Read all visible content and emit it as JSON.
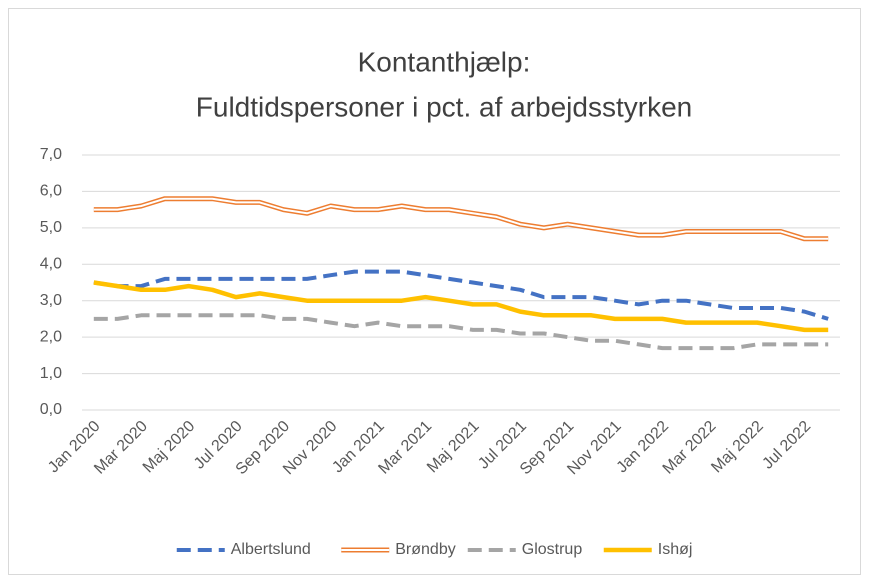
{
  "chart_data": {
    "type": "line",
    "title": [
      "Kontanthjælp:",
      "Fuldtidspersoner i pct. af arbejdsstyrken"
    ],
    "categories": [
      "Jan 2020",
      null,
      "Mar 2020",
      null,
      "Maj 2020",
      null,
      "Jul 2020",
      null,
      "Sep 2020",
      null,
      "Nov 2020",
      null,
      "Jan 2021",
      null,
      "Mar 2021",
      null,
      "Maj 2021",
      null,
      "Jul 2021",
      null,
      "Sep 2021",
      null,
      "Nov 2021",
      null,
      "Jan 2022",
      null,
      "Mar 2022",
      null,
      "Maj 2022",
      null,
      "Jul 2022",
      null
    ],
    "series": [
      {
        "name": "Albertslund",
        "color": "#4472c4",
        "line_style": "dashed",
        "values": [
          3.5,
          3.4,
          3.4,
          3.6,
          3.6,
          3.6,
          3.6,
          3.6,
          3.6,
          3.6,
          3.7,
          3.8,
          3.8,
          3.8,
          3.7,
          3.6,
          3.5,
          3.4,
          3.3,
          3.1,
          3.1,
          3.1,
          3.0,
          2.9,
          3.0,
          3.0,
          2.9,
          2.8,
          2.8,
          2.8,
          2.7,
          2.5
        ]
      },
      {
        "name": "Brøndby",
        "color": "#ed7d31",
        "line_style": "double",
        "values": [
          5.5,
          5.5,
          5.6,
          5.8,
          5.8,
          5.8,
          5.7,
          5.7,
          5.5,
          5.4,
          5.6,
          5.5,
          5.5,
          5.6,
          5.5,
          5.5,
          5.4,
          5.3,
          5.1,
          5.0,
          5.1,
          5.0,
          4.9,
          4.8,
          4.8,
          4.9,
          4.9,
          4.9,
          4.9,
          4.9,
          4.7,
          4.7
        ]
      },
      {
        "name": "Glostrup",
        "color": "#a5a5a5",
        "line_style": "dashed",
        "values": [
          2.5,
          2.5,
          2.6,
          2.6,
          2.6,
          2.6,
          2.6,
          2.6,
          2.5,
          2.5,
          2.4,
          2.3,
          2.4,
          2.3,
          2.3,
          2.3,
          2.2,
          2.2,
          2.1,
          2.1,
          2.0,
          1.9,
          1.9,
          1.8,
          1.7,
          1.7,
          1.7,
          1.7,
          1.8,
          1.8,
          1.8,
          1.8
        ]
      },
      {
        "name": "Ishøj",
        "color": "#ffc000",
        "line_style": "solid",
        "values": [
          3.5,
          3.4,
          3.3,
          3.3,
          3.4,
          3.3,
          3.1,
          3.2,
          3.1,
          3.0,
          3.0,
          3.0,
          3.0,
          3.0,
          3.1,
          3.0,
          2.9,
          2.9,
          2.7,
          2.6,
          2.6,
          2.6,
          2.5,
          2.5,
          2.5,
          2.4,
          2.4,
          2.4,
          2.4,
          2.3,
          2.2,
          2.2
        ]
      }
    ],
    "ylim": [
      0,
      7
    ],
    "yticks": [
      {
        "value": 0,
        "label": "0,0"
      },
      {
        "value": 1,
        "label": "1,0"
      },
      {
        "value": 2,
        "label": "2,0"
      },
      {
        "value": 3,
        "label": "3,0"
      },
      {
        "value": 4,
        "label": "4,0"
      },
      {
        "value": 5,
        "label": "5,0"
      },
      {
        "value": 6,
        "label": "6,0"
      },
      {
        "value": 7,
        "label": "7,0"
      }
    ],
    "grid": true,
    "legend": "bottom"
  }
}
